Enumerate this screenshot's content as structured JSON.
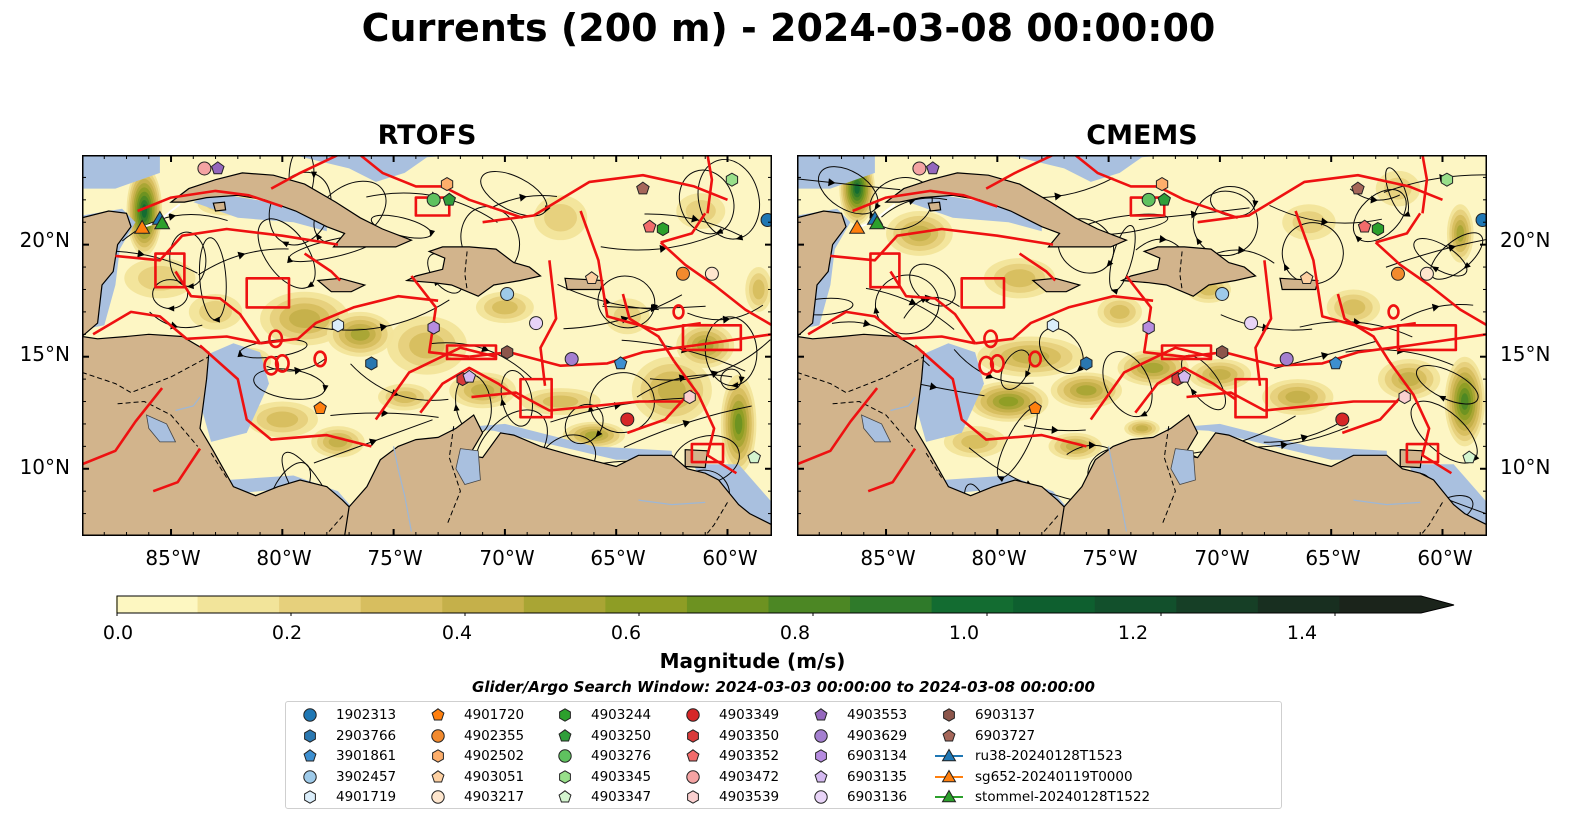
{
  "title": "Currents (200 m) - 2024-03-08 00:00:00",
  "panels": [
    {
      "title": "RTOFS",
      "key": "rtofs"
    },
    {
      "title": "CMEMS",
      "key": "cmems"
    }
  ],
  "map_extent": {
    "lon_min": -89,
    "lon_max": -58,
    "lat_min": 7,
    "lat_max": 24
  },
  "lat_ticks": [
    {
      "value": 20,
      "label": "20°N"
    },
    {
      "value": 15,
      "label": "15°N"
    },
    {
      "value": 10,
      "label": "10°N"
    }
  ],
  "lon_ticks": [
    {
      "value": -85,
      "label": "85°W"
    },
    {
      "value": -80,
      "label": "80°W"
    },
    {
      "value": -75,
      "label": "75°W"
    },
    {
      "value": -70,
      "label": "70°W"
    },
    {
      "value": -65,
      "label": "65°W"
    },
    {
      "value": -60,
      "label": "60°W"
    }
  ],
  "colorbar": {
    "label": "Magnitude (m/s)",
    "min": 0.0,
    "max": 1.5,
    "extend": "max",
    "ticks": [
      {
        "value": 0.0,
        "label": "0.0"
      },
      {
        "value": 0.2,
        "label": "0.2"
      },
      {
        "value": 0.4,
        "label": "0.4"
      },
      {
        "value": 0.6,
        "label": "0.6"
      },
      {
        "value": 0.8,
        "label": "0.8"
      },
      {
        "value": 1.0,
        "label": "1.0"
      },
      {
        "value": 1.2,
        "label": "1.2"
      },
      {
        "value": 1.4,
        "label": "1.4"
      }
    ],
    "colors": [
      "#fdf7c1",
      "#f2e49a",
      "#e6d07c",
      "#d7be5f",
      "#c5b04a",
      "#a9a534",
      "#8e9d25",
      "#6d9221",
      "#4c8724",
      "#2f7a2a",
      "#136c31",
      "#0e5f2f",
      "#12502c",
      "#163f26",
      "#182f20",
      "#1b241b"
    ]
  },
  "search_window": "Glider/Argo Search Window: 2024-03-03 00:00:00 to 2024-03-08 00:00:00",
  "legend": [
    {
      "label": "1902313",
      "marker": "circle",
      "color": "#1f77b4"
    },
    {
      "label": "2903766",
      "marker": "hexagon",
      "color": "#2a77b0"
    },
    {
      "label": "3901861",
      "marker": "pentagon",
      "color": "#3d8fd0"
    },
    {
      "label": "3902457",
      "marker": "circle",
      "color": "#9ecae9"
    },
    {
      "label": "4901719",
      "marker": "hexagon",
      "color": "#dbeefb"
    },
    {
      "label": "4901720",
      "marker": "pentagon",
      "color": "#ff7f0e"
    },
    {
      "label": "4902355",
      "marker": "circle",
      "color": "#f28a2e"
    },
    {
      "label": "4902502",
      "marker": "hexagon",
      "color": "#fdae6b"
    },
    {
      "label": "4903051",
      "marker": "pentagon",
      "color": "#fdd0a2"
    },
    {
      "label": "4903217",
      "marker": "circle",
      "color": "#fee6ce"
    },
    {
      "label": "4903244",
      "marker": "hexagon",
      "color": "#2ca02c"
    },
    {
      "label": "4903250",
      "marker": "pentagon",
      "color": "#2f9e3a"
    },
    {
      "label": "4903276",
      "marker": "circle",
      "color": "#5fc25f"
    },
    {
      "label": "4903345",
      "marker": "hexagon",
      "color": "#98df8a"
    },
    {
      "label": "4903347",
      "marker": "pentagon",
      "color": "#d4f5cf"
    },
    {
      "label": "4903349",
      "marker": "circle",
      "color": "#d62728"
    },
    {
      "label": "4903350",
      "marker": "hexagon",
      "color": "#d93a3a"
    },
    {
      "label": "4903352",
      "marker": "pentagon",
      "color": "#f26b6b"
    },
    {
      "label": "4903472",
      "marker": "circle",
      "color": "#f4a3a3"
    },
    {
      "label": "4903539",
      "marker": "hexagon",
      "color": "#fbd0d0"
    },
    {
      "label": "4903553",
      "marker": "pentagon",
      "color": "#9467bd"
    },
    {
      "label": "4903629",
      "marker": "circle",
      "color": "#a47fd0"
    },
    {
      "label": "6903134",
      "marker": "hexagon",
      "color": "#b68ce0"
    },
    {
      "label": "6903135",
      "marker": "pentagon",
      "color": "#d4b9f0"
    },
    {
      "label": "6903136",
      "marker": "circle",
      "color": "#e8d4f7"
    },
    {
      "label": "6903137",
      "marker": "hexagon",
      "color": "#8c564b"
    },
    {
      "label": "6903727",
      "marker": "pentagon",
      "color": "#a6675a"
    },
    {
      "label": "ru38-20240128T1523",
      "marker": "triangle-line",
      "color": "#1f77b4"
    },
    {
      "label": "sg652-20240119T0000",
      "marker": "triangle-line",
      "color": "#ff7f0e"
    },
    {
      "label": "stommel-20240128T1522",
      "marker": "triangle-line",
      "color": "#2ca02c"
    }
  ],
  "floats": [
    {
      "id": "1902313",
      "lon": -58.2,
      "lat": 21.1
    },
    {
      "id": "2903766",
      "lon": -76.0,
      "lat": 14.7
    },
    {
      "id": "3901861",
      "lon": -64.8,
      "lat": 14.7
    },
    {
      "id": "3902457",
      "lon": -69.9,
      "lat": 17.8
    },
    {
      "id": "4901719",
      "lon": -77.5,
      "lat": 16.4
    },
    {
      "id": "4901720",
      "lon": -78.3,
      "lat": 12.7
    },
    {
      "id": "4902355",
      "lon": -62.0,
      "lat": 18.7
    },
    {
      "id": "4902502",
      "lon": -72.6,
      "lat": 22.7
    },
    {
      "id": "4903051",
      "lon": -66.1,
      "lat": 18.5
    },
    {
      "id": "4903217",
      "lon": -60.7,
      "lat": 18.7
    },
    {
      "id": "4903244",
      "lon": -62.9,
      "lat": 20.7
    },
    {
      "id": "4903250",
      "lon": -72.5,
      "lat": 22.0
    },
    {
      "id": "4903276",
      "lon": -73.2,
      "lat": 22.0
    },
    {
      "id": "4903345",
      "lon": -59.8,
      "lat": 22.9
    },
    {
      "id": "4903347",
      "lon": -58.8,
      "lat": 10.5
    },
    {
      "id": "4903349",
      "lon": -64.5,
      "lat": 12.2
    },
    {
      "id": "4903350",
      "lon": -71.9,
      "lat": 14.0
    },
    {
      "id": "4903352",
      "lon": -63.5,
      "lat": 20.8
    },
    {
      "id": "4903472",
      "lon": -83.5,
      "lat": 23.4
    },
    {
      "id": "4903539",
      "lon": -61.7,
      "lat": 13.2
    },
    {
      "id": "4903553",
      "lon": -82.9,
      "lat": 23.4
    },
    {
      "id": "4903629",
      "lon": -67.0,
      "lat": 14.9
    },
    {
      "id": "6903134",
      "lon": -73.2,
      "lat": 16.3
    },
    {
      "id": "6903135",
      "lon": -71.6,
      "lat": 14.1
    },
    {
      "id": "6903136",
      "lon": -68.6,
      "lat": 16.5
    },
    {
      "id": "6903137",
      "lon": -69.9,
      "lat": 15.2
    },
    {
      "id": "6903727",
      "lon": -63.8,
      "lat": 22.5
    }
  ],
  "gliders": [
    {
      "id": "ru38-20240128T1523",
      "lon": -85.5,
      "lat": 21.1
    },
    {
      "id": "sg652-20240119T0000",
      "lon": -86.3,
      "lat": 20.7
    },
    {
      "id": "stommel-20240128T1522",
      "lon": -85.4,
      "lat": 20.9
    }
  ]
}
